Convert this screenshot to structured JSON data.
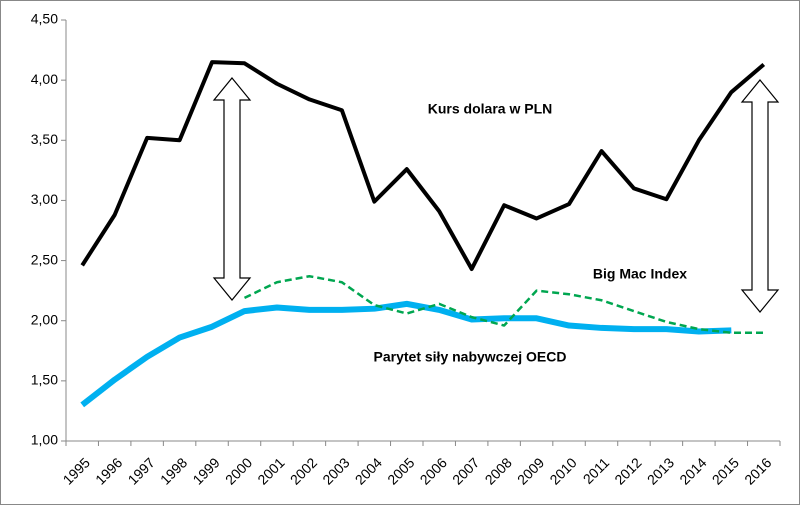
{
  "chart_data": {
    "type": "line",
    "categories": [
      "1995",
      "1996",
      "1997",
      "1998",
      "1999",
      "2000",
      "2001",
      "2002",
      "2003",
      "2004",
      "2005",
      "2006",
      "2007",
      "2008",
      "2009",
      "2010",
      "2011",
      "2012",
      "2013",
      "2014",
      "2015",
      "2016"
    ],
    "series": [
      {
        "name": "Kurs dolara w PLN",
        "color": "#000000",
        "values": [
          2.46,
          2.88,
          3.52,
          3.5,
          4.15,
          4.14,
          3.97,
          3.84,
          3.75,
          2.99,
          3.26,
          2.91,
          2.43,
          2.96,
          2.85,
          2.97,
          3.41,
          3.1,
          3.01,
          3.5,
          3.9,
          4.13
        ]
      },
      {
        "name": "Parytet siły nabywczej OECD",
        "color": "#00b0f0",
        "values": [
          1.3,
          1.51,
          1.7,
          1.86,
          1.95,
          2.08,
          2.11,
          2.09,
          2.09,
          2.1,
          2.14,
          2.09,
          2.01,
          2.02,
          2.02,
          1.96,
          1.94,
          1.93,
          1.93,
          1.91,
          1.92,
          null
        ]
      },
      {
        "name": "Big Mac Index",
        "color": "#00a650",
        "dashed": true,
        "values": [
          null,
          null,
          null,
          null,
          null,
          2.19,
          2.32,
          2.37,
          2.32,
          2.13,
          2.06,
          2.14,
          2.03,
          1.96,
          2.25,
          2.22,
          2.17,
          2.08,
          1.99,
          1.93,
          1.9,
          1.9
        ]
      }
    ],
    "ylim": [
      1,
      4.5
    ],
    "yticks": [
      {
        "value": 1,
        "label": "1,00"
      },
      {
        "value": 1.5,
        "label": "1,50"
      },
      {
        "value": 2,
        "label": "2,00"
      },
      {
        "value": 2.5,
        "label": "2,50"
      },
      {
        "value": 3,
        "label": "3,00"
      },
      {
        "value": 3.5,
        "label": "3,50"
      },
      {
        "value": 4,
        "label": "4,00"
      },
      {
        "value": 4.5,
        "label": "4,50"
      }
    ],
    "grid": false
  }
}
